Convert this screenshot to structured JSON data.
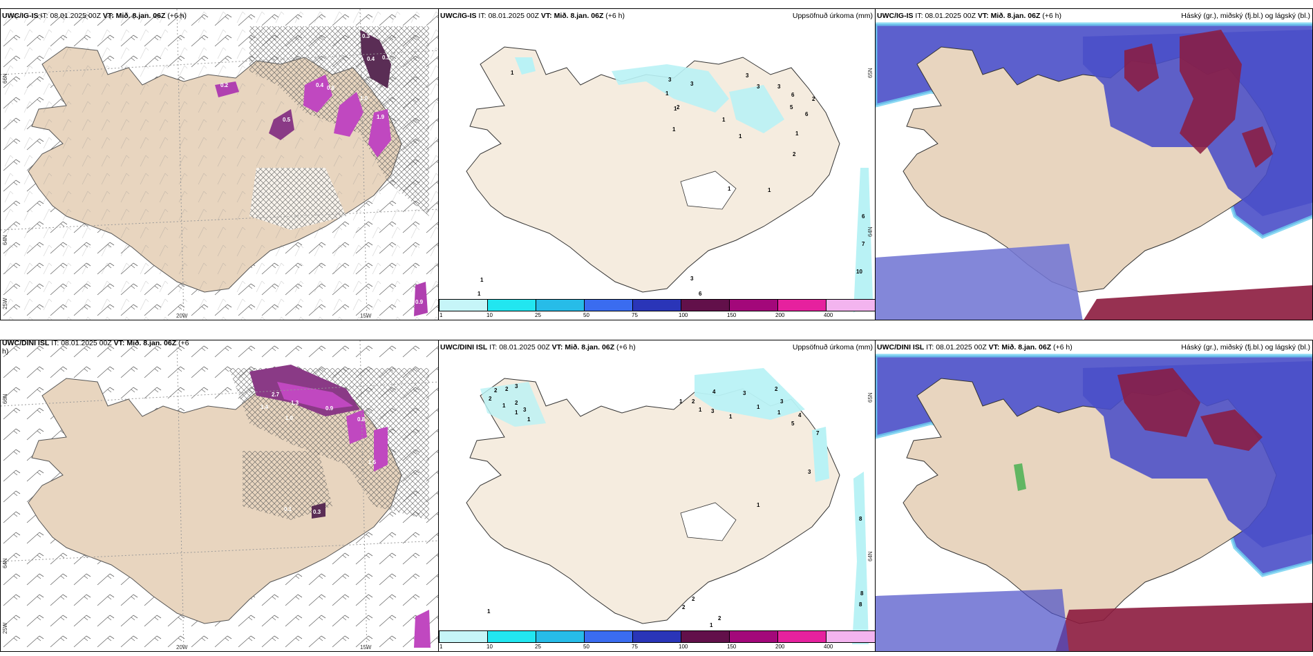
{
  "panels": {
    "r1c1": {
      "model": "UWC/IG-IS",
      "it_label": "IT:",
      "it": "08.01.2025 00Z",
      "vt_label": "VT:",
      "vt": "Mið. 8.jan. 06Z",
      "step": "(+6 h)",
      "right_title": ""
    },
    "r1c2": {
      "model": "UWC/IG-IS",
      "it_label": "IT:",
      "it": "08.01.2025 00Z",
      "vt_label": "VT:",
      "vt": "Mið. 8.jan. 06Z",
      "step": "(+6 h)",
      "right_title": "Uppsöfnuð úrkoma (mm)"
    },
    "r1c3": {
      "model": "UWC/IG-IS",
      "it_label": "IT:",
      "it": "08.01.2025 00Z",
      "vt_label": "VT:",
      "vt": "Mið. 8.jan. 06Z",
      "step": "(+6 h)",
      "right_title": "Háský (gr.), miðský (fj.bl.) og lágský (bl.)"
    },
    "r2c1": {
      "model": "UWC/DINI ISL",
      "it_label": "IT:",
      "it": "08.01.2025 00Z",
      "vt_label": "VT:",
      "vt": "Mið. 8.jan. 06Z",
      "step": "(+6",
      "step2": "h)",
      "right_title": ""
    },
    "r2c2": {
      "model": "UWC/DINI ISL",
      "it_label": "IT:",
      "it": "08.01.2025 00Z",
      "vt_label": "VT:",
      "vt": "Mið. 8.jan. 06Z",
      "step": "(+6 h)",
      "right_title": "Uppsöfnuð úrkoma (mm)"
    },
    "r2c3": {
      "model": "UWC/DINI ISL",
      "it_label": "IT:",
      "it": "08.01.2025 00Z",
      "vt_label": "VT:",
      "vt": "Mið. 8.jan. 06Z",
      "step": "(+6 h)",
      "right_title": "Háský (gr.), miðský (fj.bl.) og lágský (bl.)"
    }
  },
  "grid_labels": {
    "lat66": "66N",
    "lat64": "64N",
    "lat65": "65N",
    "lon25": "25W",
    "lon20": "20W",
    "lon15": "15W"
  },
  "colorbar": {
    "ticks": [
      "1",
      "10",
      "25",
      "50",
      "75",
      "100",
      "150",
      "200",
      "400"
    ],
    "colors": [
      "#c6f5f8",
      "#22e6f0",
      "#27bce8",
      "#3a6cf0",
      "#2a35b8",
      "#62104a",
      "#a3087a",
      "#e6219e",
      "#f3b4ef"
    ]
  },
  "colors": {
    "land": "#f5ecdf",
    "land_fill1": "#e8d5bf",
    "precip_light": "#b9f2f5",
    "cloud_low": "#4a4fc8",
    "cloud_high": "#8c1b3e"
  },
  "r1_precip_labels": [
    "1",
    "3",
    "3",
    "3",
    "1",
    "3",
    "3",
    "6",
    "2",
    "1",
    "2",
    "5",
    "6",
    "1",
    "1",
    "1",
    "1",
    "2",
    "1",
    "1",
    "6",
    "7",
    "10",
    "1",
    "3",
    "6",
    "1"
  ],
  "r2_precip_labels": [
    "2",
    "2",
    "2",
    "3",
    "1",
    "2",
    "1",
    "3",
    "1",
    "4",
    "3",
    "2",
    "3",
    "1",
    "2",
    "1",
    "1",
    "3",
    "1",
    "1",
    "4",
    "7",
    "5",
    "3",
    "1",
    "8",
    "8",
    "8",
    "2",
    "2",
    "1",
    "2",
    "1"
  ],
  "r1_ice_labels": [
    "0.3",
    "0.4",
    "0.3",
    "0.2",
    "0.4",
    "0.8",
    "1.0",
    "0.5",
    "1.9",
    "0.9"
  ],
  "r2_ice_labels": [
    "2.7",
    "1.3",
    "1.4",
    "1.0",
    "0.9",
    "0.8",
    "1.5",
    "0.1",
    "0.3"
  ]
}
